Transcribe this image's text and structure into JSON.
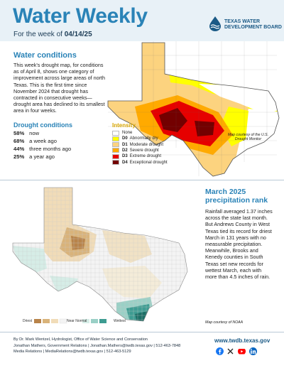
{
  "header": {
    "title": "Water Weekly",
    "subtitle_prefix": "For the week of ",
    "subtitle_date": "04/14/25",
    "logo_text": "TEXAS WATER\nDEVELOPMENT BOARD"
  },
  "water_conditions": {
    "heading": "Water conditions",
    "text": "This week's drought map, for conditions as of April 8, shows one category of improvement across large areas of north Texas. This is the first time since November 2024 that drought has contracted in consecutive weeks—drought area has declined to its smallest area in four weeks."
  },
  "drought_conditions": {
    "heading": "Drought conditions",
    "rows": [
      {
        "value": "58%",
        "label": "now"
      },
      {
        "value": "68%",
        "label": "a week ago"
      },
      {
        "value": "44%",
        "label": "three months ago"
      },
      {
        "value": "25%",
        "label": "a year ago"
      }
    ]
  },
  "intensity_legend": {
    "title": "Intensity",
    "items": [
      {
        "code": "",
        "label": "None",
        "color": "#ffffff"
      },
      {
        "code": "D0",
        "label": "Abnormally dry",
        "color": "#ffff00"
      },
      {
        "code": "D1",
        "label": "Moderate drought",
        "color": "#fcd37f"
      },
      {
        "code": "D2",
        "label": "Severe drought",
        "color": "#ffaa00"
      },
      {
        "code": "D3",
        "label": "Extreme drought",
        "color": "#e60000"
      },
      {
        "code": "D4",
        "label": "Exceptional drought",
        "color": "#730000"
      }
    ]
  },
  "drought_map_credit": "Map courtesy of the U.S. Drought Monitor",
  "precipitation": {
    "heading": "March 2025 precipitation rank",
    "text": "Rainfall averaged 1.37 inches across the state last month. But Andrews County in West Texas tied its record for driest March in 131 years with no measurable precipitation. Meanwhile, Brooks and Kenedy counties in South Texas set new records for wettest March, each with more than 4.5 inches of rain.",
    "credit": "Map courtesy of NOAA",
    "legend": {
      "driest": "Driest",
      "near_normal": "Near Normal",
      "wettest": "Wettest"
    }
  },
  "footer": {
    "line1": "By Dr. Mark Wentzel, Hydrologist, Office of Water Science and Conservation",
    "line2": "Jonathan Mathers, Government Relations | Jonathan.Mathers@twdb.texas.gov | 512-463-7848",
    "line3": "Media Relations | MediaRelations@twdb.texas.gov | 512-463-5129",
    "website": "www.twdb.texas.gov",
    "social": [
      "facebook-icon",
      "x-icon",
      "youtube-icon",
      "linkedin-icon"
    ]
  }
}
